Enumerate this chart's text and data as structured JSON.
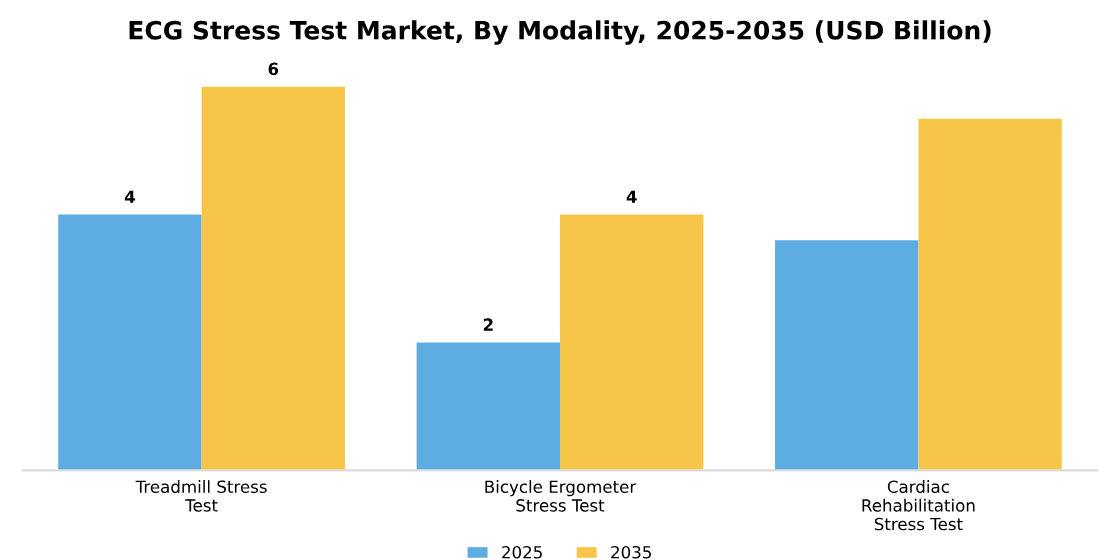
{
  "chart_data": {
    "type": "bar",
    "title": "ECG Stress Test Market, By Modality, 2025-2035 (USD Billion)",
    "categories": [
      "Treadmill Stress\nTest",
      "Bicycle Ergometer\nStress Test",
      "Cardiac\nRehabilitation\nStress Test"
    ],
    "series": [
      {
        "name": "2025",
        "color": "#5dade2",
        "values": [
          4,
          2,
          3.6
        ],
        "value_labels": [
          "4",
          "2",
          null
        ]
      },
      {
        "name": "2035",
        "color": "#f7c548",
        "values": [
          6,
          4,
          5.5
        ],
        "value_labels": [
          "6",
          "4",
          null
        ]
      }
    ],
    "legend": "bottom",
    "grid": false
  }
}
